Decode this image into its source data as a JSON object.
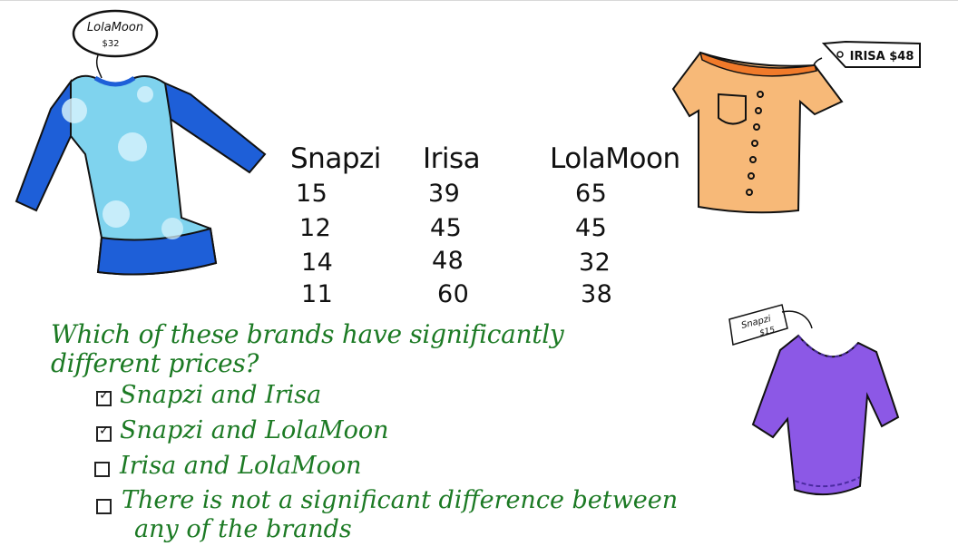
{
  "table": {
    "headers": [
      "Snapzi",
      "Irisa",
      "LolaMoon"
    ],
    "rows": [
      [
        "15",
        "39",
        "65"
      ],
      [
        "12",
        "45",
        "45"
      ],
      [
        "14",
        "48",
        "32"
      ],
      [
        "11",
        "60",
        "38"
      ]
    ]
  },
  "question": {
    "line1": "Which of these brands have significantly",
    "line2": "different prices?"
  },
  "options": [
    {
      "label": "Snapzi and Irisa",
      "checked": true
    },
    {
      "label": "Snapzi and LolaMoon",
      "checked": true
    },
    {
      "label": "Irisa and LolaMoon",
      "checked": false
    },
    {
      "label": "There is not a significant difference between",
      "label2": "any of the brands",
      "checked": false
    }
  ],
  "tags": {
    "lolamoon_brand": "LolaMoon",
    "lolamoon_price": "$32",
    "irisa": "IRISA $48",
    "snapzi_brand": "Snapzi",
    "snapzi_price": "$15"
  },
  "colors": {
    "green_text": "#1c7a24",
    "lolamoon_shirt": "#7fd3ee",
    "lolamoon_sleeve": "#1e5fd8",
    "irisa_shirt": "#f7b978",
    "irisa_collar": "#f07a2a",
    "snapzi_shirt": "#8c58e6"
  }
}
